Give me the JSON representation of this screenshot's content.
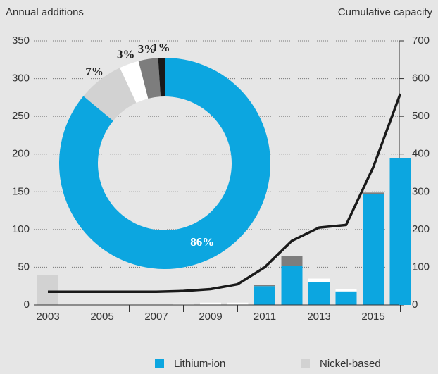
{
  "chart_data": [
    {
      "type": "bar",
      "ylabel": "Annual additions",
      "y2label": "Cumulative capacity",
      "categories": [
        "2003",
        null,
        "2005",
        null,
        "2007",
        null,
        "2009",
        null,
        "2011",
        null,
        "2013",
        null,
        "2015",
        null
      ],
      "series": [
        {
          "name": "Lithium-ion",
          "color": "#0ca6e0",
          "values": [
            0,
            0,
            0,
            0,
            0,
            0,
            0,
            0,
            25,
            52,
            30,
            18,
            147,
            195
          ]
        },
        {
          "name": "Nickel-based",
          "color": "#d2d2d2",
          "values": [
            40,
            0,
            0,
            0,
            0,
            0,
            0,
            0,
            0,
            0,
            0,
            0,
            0,
            0
          ]
        },
        {
          "color": "#ffffff",
          "values": [
            0,
            0,
            0,
            0,
            0,
            2,
            3,
            3,
            0,
            0,
            5,
            3,
            0,
            0
          ]
        },
        {
          "color": "#7d7d7d",
          "values": [
            0,
            0,
            0,
            0,
            0,
            0,
            0,
            0,
            2,
            13,
            0,
            0,
            2,
            0
          ]
        },
        {
          "type": "line",
          "axis": "y2",
          "color": "#1a1a1a",
          "values": [
            35,
            35,
            35,
            35,
            35,
            37,
            42,
            55,
            100,
            170,
            205,
            212,
            365,
            560
          ]
        }
      ],
      "ylim": [
        0,
        350
      ],
      "yticks": [
        0,
        50,
        100,
        150,
        200,
        250,
        300,
        350
      ],
      "y2lim": [
        0,
        700
      ],
      "y2ticks": [
        0,
        100,
        200,
        300,
        400,
        500,
        600,
        700
      ],
      "grid": true
    },
    {
      "type": "pie",
      "values": [
        86,
        7,
        3,
        3,
        1
      ],
      "value_labels": [
        "86%",
        "7%",
        "3%",
        "3%",
        "1%"
      ],
      "colors": [
        "#0ca6e0",
        "#d2d2d2",
        "#ffffff",
        "#7d7d7d",
        "#1a1a1a"
      ]
    }
  ]
}
